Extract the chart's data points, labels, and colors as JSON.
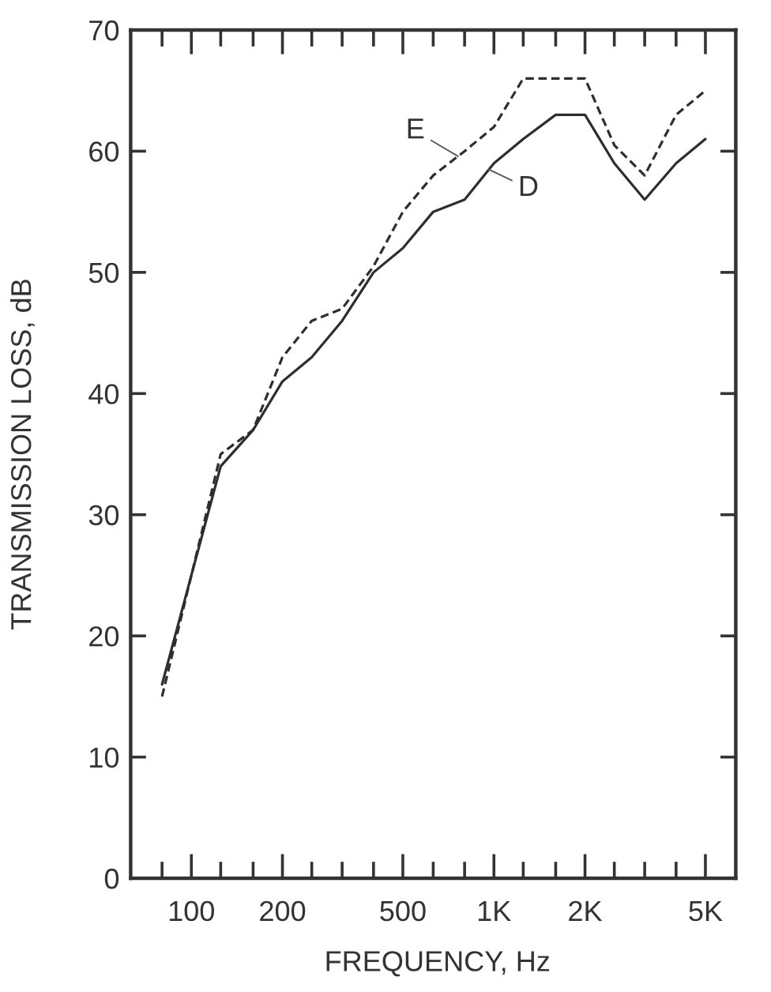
{
  "chart_data": {
    "type": "line",
    "xlabel": "FREQUENCY, Hz",
    "ylabel": "TRANSMISSION LOSS, dB",
    "log": "x",
    "x": [
      80,
      100,
      125,
      160,
      200,
      250,
      315,
      400,
      500,
      630,
      800,
      1000,
      1250,
      1600,
      2000,
      2500,
      3150,
      4000,
      5000
    ],
    "series": [
      {
        "name": "D",
        "color": "#2e2e2e",
        "line_style": "solid",
        "values": [
          16,
          25,
          34,
          37,
          41,
          43,
          46,
          50,
          52,
          55,
          56,
          59,
          61,
          63,
          63,
          59,
          56,
          59,
          61
        ]
      },
      {
        "name": "E",
        "color": "#2e2e2e",
        "line_style": "dashed",
        "values": [
          15,
          25,
          35,
          37,
          43,
          46,
          47,
          50.5,
          55,
          58,
          60,
          62,
          66,
          66,
          66,
          60.5,
          58,
          63,
          65
        ]
      }
    ],
    "xlim": [
      63,
      6300
    ],
    "xticks": [
      {
        "value": 80,
        "label": null
      },
      100,
      {
        "value": 125,
        "label": null
      },
      {
        "value": 160,
        "label": null
      },
      200,
      {
        "value": 250,
        "label": null
      },
      {
        "value": 315,
        "label": null
      },
      {
        "value": 400,
        "label": null
      },
      500,
      {
        "value": 630,
        "label": null
      },
      {
        "value": 800,
        "label": null
      },
      {
        "value": 1000,
        "label": "1K"
      },
      {
        "value": 1250,
        "label": null
      },
      {
        "value": 1600,
        "label": null
      },
      {
        "value": 2000,
        "label": "2K"
      },
      {
        "value": 2500,
        "label": null
      },
      {
        "value": 3150,
        "label": null
      },
      {
        "value": 4000,
        "label": null
      },
      {
        "value": 5000,
        "label": "5K"
      }
    ],
    "ylim": [
      0,
      70
    ],
    "yticks": [
      0,
      10,
      20,
      30,
      40,
      50,
      60,
      70
    ],
    "grid": false,
    "legend": false,
    "marker": "none"
  }
}
